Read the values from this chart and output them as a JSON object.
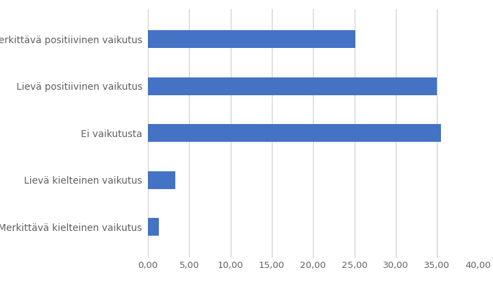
{
  "categories": [
    "Merkittävä positiivinen vaikutus",
    "Lievä positiivinen vaikutus",
    "Ei vaikutusta",
    "Lievä kielteinen vaikutus",
    "Merkittävä kielteinen vaikutus"
  ],
  "values": [
    25.1,
    35.0,
    35.5,
    3.3,
    1.3
  ],
  "bar_color": "#4472C4",
  "xlim": [
    0,
    40
  ],
  "xticks": [
    0,
    5,
    10,
    15,
    20,
    25,
    30,
    35,
    40
  ],
  "background_color": "#ffffff",
  "label_fontsize": 10,
  "tick_fontsize": 9.5,
  "bar_height": 0.38,
  "grid_color": "#cccccc",
  "label_color": "#606060"
}
